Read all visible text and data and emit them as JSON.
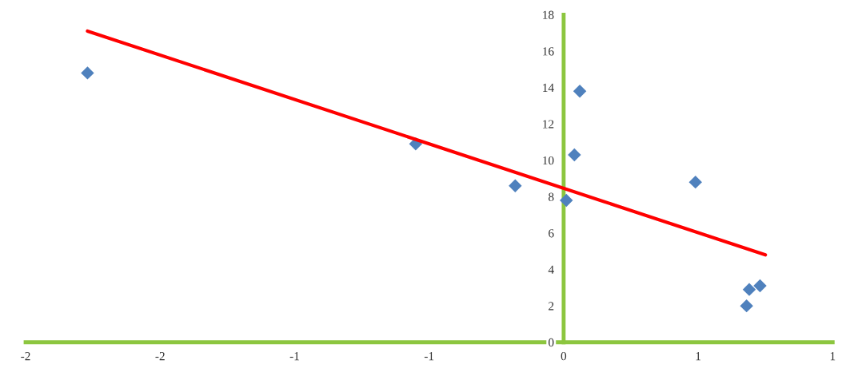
{
  "chart_data": {
    "type": "scatter",
    "series": [
      {
        "color": "#4f81bd",
        "marker": "diamond",
        "x": [
          -1.77,
          -0.55,
          -0.18,
          0.01,
          0.04,
          0.06,
          0.49,
          0.68,
          0.69,
          0.73
        ],
        "values": [
          14.8,
          10.9,
          8.6,
          7.8,
          10.3,
          13.8,
          8.8,
          2.0,
          2.9,
          3.1
        ]
      },
      {
        "type": "line",
        "color": "#ff0000",
        "marker": "none",
        "line_style": "solid",
        "x": [
          -1.77,
          0.75
        ],
        "values": [
          17.1,
          4.8
        ]
      }
    ],
    "xlim": [
      -2,
      1
    ],
    "xticks": [
      -2,
      {
        "value": -1.5,
        "label": "-2"
      },
      -1,
      {
        "value": -0.5,
        "label": "-1"
      },
      0,
      {
        "value": 0.5,
        "label": "1"
      },
      1
    ],
    "ylim": [
      0,
      18
    ],
    "yticks": [
      0,
      2,
      4,
      6,
      8,
      10,
      12,
      14,
      16,
      18
    ],
    "grid": false,
    "legend": false
  }
}
